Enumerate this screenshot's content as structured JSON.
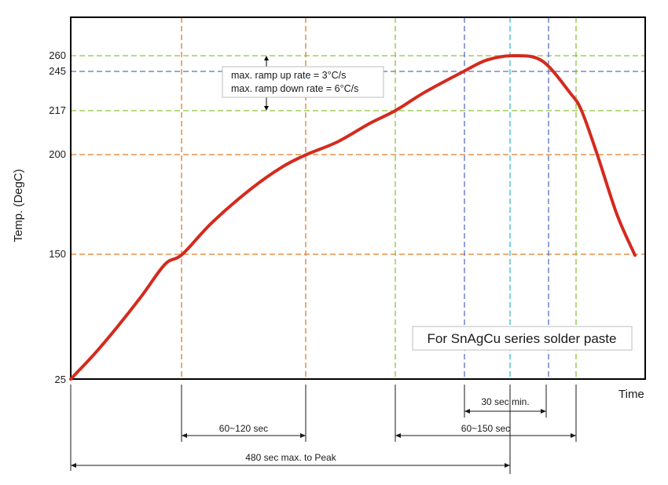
{
  "chart_data": {
    "type": "line",
    "ylabel": "Temp. (DegC)",
    "xlabel": "Time",
    "y_ticks": [
      "260",
      "245",
      "217",
      "200",
      "150",
      "25"
    ],
    "series": [
      {
        "color": "#d42a1e",
        "points": [
          {
            "t": 0,
            "temp": 25
          },
          {
            "t": 30,
            "temp": 50
          },
          {
            "t": 60,
            "temp": 78
          },
          {
            "t": 90,
            "temp": 108
          },
          {
            "t": 120,
            "temp": 140
          },
          {
            "t": 142,
            "temp": 150
          },
          {
            "t": 180,
            "temp": 166
          },
          {
            "t": 230,
            "temp": 183
          },
          {
            "t": 270,
            "temp": 194
          },
          {
            "t": 300,
            "temp": 200
          },
          {
            "t": 340,
            "temp": 205
          },
          {
            "t": 380,
            "temp": 212
          },
          {
            "t": 413,
            "temp": 217
          },
          {
            "t": 450,
            "temp": 230
          },
          {
            "t": 500,
            "temp": 245
          },
          {
            "t": 530,
            "temp": 256
          },
          {
            "t": 565,
            "temp": 260
          },
          {
            "t": 600,
            "temp": 255
          },
          {
            "t": 635,
            "temp": 230
          },
          {
            "t": 650,
            "temp": 217
          },
          {
            "t": 670,
            "temp": 200
          },
          {
            "t": 695,
            "temp": 170
          },
          {
            "t": 718,
            "temp": 149
          }
        ]
      }
    ],
    "annotations": {
      "ramp_up": "max. ramp up rate = 3°C/s",
      "ramp_down": "max. ramp down rate = 6°C/s",
      "caption": "For SnAgCu series solder paste",
      "dim_30": "30 sec min.",
      "dim_60_120": "60~120 sec",
      "dim_60_150": "60~150 sec",
      "dim_480": "480 sec max. to Peak"
    },
    "colors": {
      "curve": "#d42a1e",
      "orange_lines": "#e07b28",
      "green_lines": "#8cc43c",
      "blue_lines": "#5a6fc0",
      "cyan_lines": "#3ab8d0"
    }
  }
}
